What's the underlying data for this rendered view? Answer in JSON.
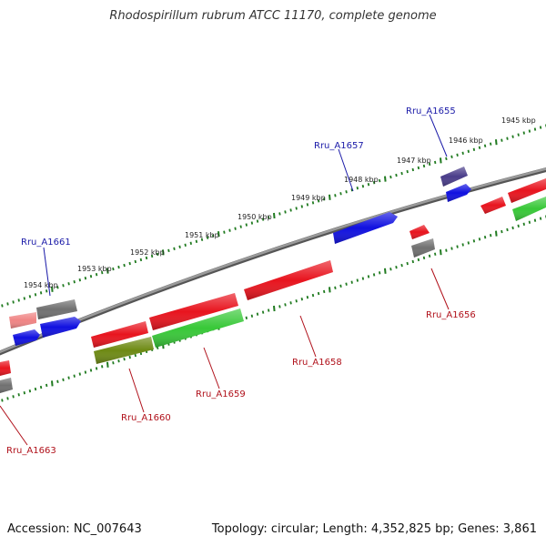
{
  "title": "Rhodospirillum rubrum ATCC 11170, complete genome",
  "footer": {
    "accession": "Accession: NC_007643",
    "topology": "Topology: circular; Length: 4,352,825 bp; Genes: 3,861"
  },
  "scale_labels": [
    "1945 kbp",
    "1946 kbp",
    "1947 kbp",
    "1948 kbp",
    "1949 kbp",
    "1950 kbp",
    "1951 kbp",
    "1952 kbp",
    "1953 kbp",
    "1954 kbp"
  ],
  "gene_labels": {
    "Rru_A1655": "Rru_A1655",
    "Rru_A1657": "Rru_A1657",
    "Rru_A1661": "Rru_A1661",
    "Rru_A1656": "Rru_A1656",
    "Rru_A1658": "Rru_A1658",
    "Rru_A1659": "Rru_A1659",
    "Rru_A1660": "Rru_A1660",
    "Rru_A1663": "Rru_A1663"
  },
  "colors": {
    "red": "#e8141e",
    "blue": "#1010e0",
    "green": "#38c838",
    "gray": "#707070",
    "olive": "#6e8a14",
    "pink": "#f08484",
    "purple": "#4a3d8a",
    "tick_green": "#1f7a1f",
    "backbone": "#8a8a8a"
  }
}
